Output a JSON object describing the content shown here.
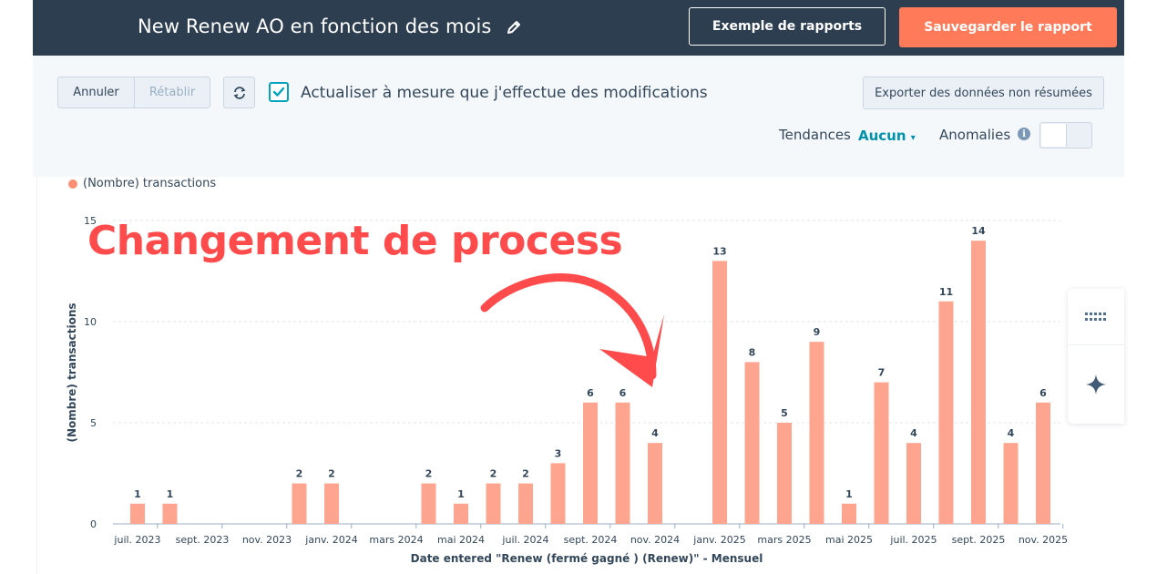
{
  "header": {
    "title": "New Renew AO en fonction des mois",
    "examples_label": "Exemple de rapports",
    "save_label": "Sauvegarder le rapport"
  },
  "toolbar": {
    "undo_label": "Annuler",
    "redo_label": "Rétablir",
    "auto_update_label": "Actualiser à mesure que j'effectue des modifications",
    "auto_update_checked": true,
    "export_label": "Exporter des données non résumées",
    "trends_label": "Tendances",
    "trends_value": "Aucun",
    "anomalies_label": "Anomalies",
    "anomalies_enabled": false
  },
  "annotation": {
    "text": "Changement de process",
    "color": "#ff4b4b"
  },
  "colors": {
    "bar": "#ffa58f",
    "header_bg": "#2d3e50",
    "save_button": "#ff7a59",
    "accent": "#00a4bd"
  },
  "chart_data": {
    "type": "bar",
    "legend": "(Nombre) transactions",
    "xlabel": "Date entered \"Renew (fermé gagné ) (Renew)\" - Mensuel",
    "ylabel": "(Nombre) transactions",
    "ylim": [
      0,
      15
    ],
    "yticks": [
      0,
      5,
      10,
      15
    ],
    "grid": true,
    "categories": [
      "juil. 2023",
      "août 2023",
      "sept. 2023",
      "oct. 2023",
      "nov. 2023",
      "déc. 2023",
      "janv. 2024",
      "févr. 2024",
      "mars 2024",
      "avr. 2024",
      "mai 2024",
      "juin 2024",
      "juil. 2024",
      "août 2024",
      "sept. 2024",
      "oct. 2024",
      "nov. 2024",
      "déc. 2024",
      "janv. 2025",
      "févr. 2025",
      "mars 2025",
      "avr. 2025",
      "mai 2025",
      "juin 2025",
      "juil. 2025",
      "août 2025",
      "sept. 2025",
      "oct. 2025",
      "nov. 2025"
    ],
    "tick_labels": [
      "juil. 2023",
      "sept. 2023",
      "nov. 2023",
      "janv. 2024",
      "mars 2024",
      "mai 2024",
      "juil. 2024",
      "sept. 2024",
      "nov. 2024",
      "janv. 2025",
      "mars 2025",
      "mai 2025",
      "juil. 2025",
      "sept. 2025",
      "nov. 2025"
    ],
    "values": [
      1,
      1,
      0,
      0,
      0,
      2,
      2,
      0,
      0,
      2,
      1,
      2,
      2,
      3,
      6,
      6,
      4,
      0,
      13,
      8,
      5,
      9,
      1,
      7,
      4,
      11,
      14,
      4,
      6
    ]
  }
}
